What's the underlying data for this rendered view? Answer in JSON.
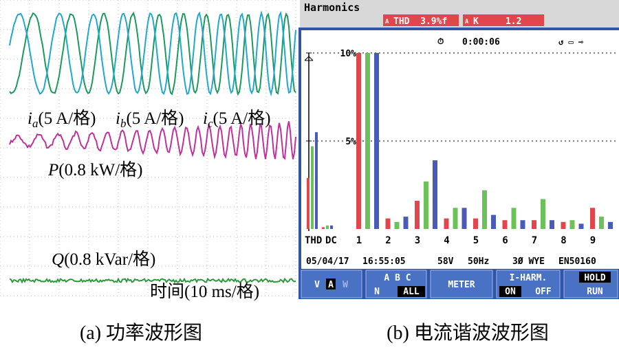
{
  "left_panel": {
    "labels": [
      {
        "symbol": "i",
        "sub": "a",
        "scale": "(5 A/格)"
      },
      {
        "symbol": "i",
        "sub": "b",
        "scale": "(5 A/格)"
      },
      {
        "symbol": "i",
        "sub": "c",
        "scale": "(5 A/格)"
      }
    ],
    "power_label": {
      "symbol": "P",
      "scale": "(0.8 kW/格)"
    },
    "reactive_label": {
      "symbol": "Q",
      "scale": "(0.8 kVar/格)"
    },
    "time_label": "时间(10 ms/格)"
  },
  "analyzer": {
    "title": "Harmonics",
    "thd_box": {
      "phase": "A",
      "text": "THD  3.9%f"
    },
    "k_box": {
      "phase": "A",
      "text": "K     1.2"
    },
    "timer": "0:00:06",
    "status": [
      "05/04/17",
      "16:55:05",
      "58V",
      "50Hz",
      "3Ø WYE",
      "EN50160"
    ],
    "softkeys": {
      "k1": [
        "V",
        "A",
        "W"
      ],
      "k2": [
        "A  B  C",
        "N",
        "ALL"
      ],
      "k3": "METER",
      "k4": [
        "I-HARM.",
        "ON",
        "OFF"
      ],
      "k5": [
        "HOLD",
        "RUN"
      ]
    }
  },
  "chart_data": {
    "type": "bar",
    "categories": [
      "THD",
      "DC",
      "1",
      "2",
      "3",
      "4",
      "5",
      "6",
      "7",
      "8",
      "9"
    ],
    "series": [
      {
        "color": "#e0474c",
        "values": [
          2.9,
          0.1,
          10,
          0.6,
          1.6,
          0.6,
          0.6,
          0.5,
          0.5,
          0.4,
          1.2
        ]
      },
      {
        "color": "#6cc15a",
        "values": [
          4.7,
          0.2,
          10,
          0.4,
          2.7,
          1.2,
          2.2,
          1.2,
          1.7,
          0.5,
          0.7
        ]
      },
      {
        "color": "#4a5bb5",
        "values": [
          5.5,
          0.2,
          10,
          0.7,
          3.9,
          1.2,
          0.8,
          0.5,
          0.5,
          0.3,
          0.4
        ]
      }
    ],
    "ylim": [
      0,
      10
    ],
    "yticks": [
      {
        "value": 10,
        "label": "10%"
      },
      {
        "value": 5,
        "label": "5%"
      }
    ],
    "grid": true
  },
  "captions": [
    "(a) 功率波形图",
    "(b) 电流谐波波形图"
  ]
}
